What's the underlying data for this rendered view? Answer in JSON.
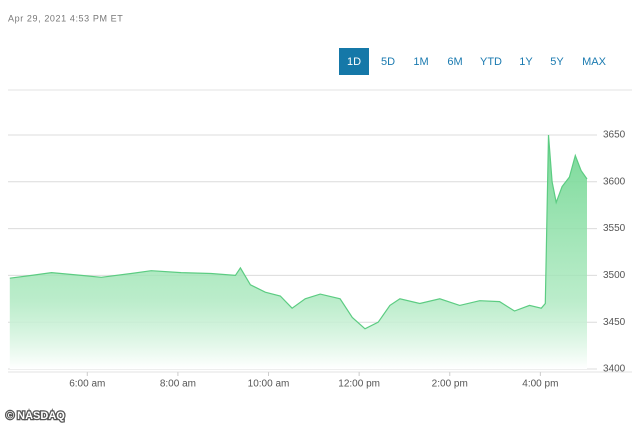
{
  "chart_data": {
    "type": "area",
    "timestamp": "Apr 29, 2021 4:53 PM ET",
    "ranges": [
      "1D",
      "5D",
      "1M",
      "6M",
      "YTD",
      "1Y",
      "5Y",
      "MAX"
    ],
    "selected_range": 0,
    "source": "© NASDAQ",
    "color": "#5ccc82",
    "x": [
      4.29,
      4.77,
      5.21,
      5.87,
      6.31,
      6.97,
      7.41,
      8.07,
      8.73,
      9.27,
      9.38,
      9.6,
      9.93,
      10.26,
      10.52,
      10.81,
      11.14,
      11.58,
      11.85,
      12.13,
      12.42,
      12.68,
      12.9,
      13.34,
      13.78,
      14.22,
      14.66,
      15.1,
      15.43,
      15.76,
      16.02,
      16.11,
      16.18,
      16.26,
      16.35,
      16.48,
      16.64,
      16.77,
      16.9,
      17.03
    ],
    "values": [
      3497,
      3500,
      3503,
      3500,
      3498,
      3502,
      3505,
      3503,
      3502,
      3500,
      3508,
      3490,
      3482,
      3478,
      3465,
      3475,
      3480,
      3475,
      3455,
      3443,
      3450,
      3468,
      3475,
      3470,
      3475,
      3468,
      3473,
      3472,
      3462,
      3468,
      3465,
      3470,
      3650,
      3600,
      3578,
      3595,
      3605,
      3628,
      3612,
      3603
    ],
    "xlim": [
      4.25,
      17.25
    ],
    "xticks": [
      {
        "value": 6,
        "label": "6:00 am"
      },
      {
        "value": 8,
        "label": "8:00 am"
      },
      {
        "value": 10,
        "label": "10:00 am"
      },
      {
        "value": 12,
        "label": "12:00 pm"
      },
      {
        "value": 14,
        "label": "2:00 pm"
      },
      {
        "value": 16,
        "label": "4:00 pm"
      }
    ],
    "ylim": [
      3400,
      3650
    ],
    "yticks": [
      3400,
      3450,
      3500,
      3550,
      3600,
      3650
    ],
    "grid": true
  }
}
